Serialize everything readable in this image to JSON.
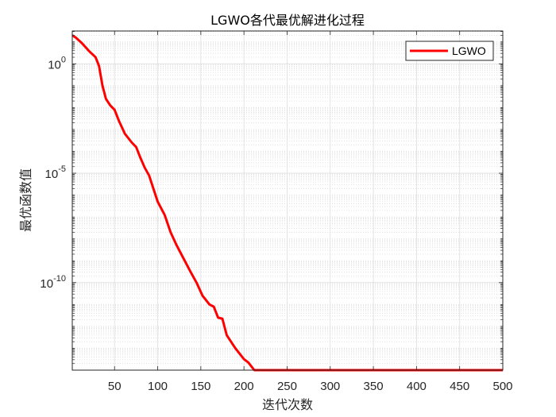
{
  "chart_data": {
    "type": "line",
    "title": "LGWO各代最优解进化过程",
    "xlabel": "迭代次数",
    "ylabel": "最优函数值",
    "xlim": [
      1,
      500
    ],
    "ylim_exponent": [
      -14,
      1.5
    ],
    "yscale": "log",
    "grid": true,
    "minor_grid": true,
    "legend_position": "top-right",
    "x_ticks": [
      50,
      100,
      150,
      200,
      250,
      300,
      350,
      400,
      450,
      500
    ],
    "y_ticks": [
      {
        "base": "10",
        "exp": "0",
        "value_exponent": 0
      },
      {
        "base": "10",
        "exp": "-5",
        "value_exponent": -5
      },
      {
        "base": "10",
        "exp": "-10",
        "value_exponent": -10
      }
    ],
    "series": [
      {
        "name": "LGWO",
        "color": "#ff0000",
        "points_log10": [
          [
            1,
            1.3
          ],
          [
            5,
            1.2
          ],
          [
            12,
            0.95
          ],
          [
            20,
            0.6
          ],
          [
            28,
            0.3
          ],
          [
            32,
            -0.1
          ],
          [
            36,
            -1.0
          ],
          [
            40,
            -1.6
          ],
          [
            45,
            -1.9
          ],
          [
            50,
            -2.1
          ],
          [
            55,
            -2.6
          ],
          [
            62,
            -3.2
          ],
          [
            70,
            -3.6
          ],
          [
            75,
            -3.8
          ],
          [
            80,
            -4.3
          ],
          [
            85,
            -4.75
          ],
          [
            90,
            -5.1
          ],
          [
            95,
            -5.7
          ],
          [
            100,
            -6.3
          ],
          [
            108,
            -6.9
          ],
          [
            115,
            -7.7
          ],
          [
            122,
            -8.3
          ],
          [
            130,
            -8.9
          ],
          [
            138,
            -9.5
          ],
          [
            145,
            -10.0
          ],
          [
            152,
            -10.6
          ],
          [
            160,
            -11.0
          ],
          [
            165,
            -11.1
          ],
          [
            170,
            -11.6
          ],
          [
            175,
            -11.65
          ],
          [
            180,
            -12.4
          ],
          [
            190,
            -13.0
          ],
          [
            200,
            -13.5
          ],
          [
            205,
            -13.65
          ],
          [
            212,
            -14.0
          ],
          [
            500,
            -14.0
          ]
        ]
      }
    ]
  }
}
